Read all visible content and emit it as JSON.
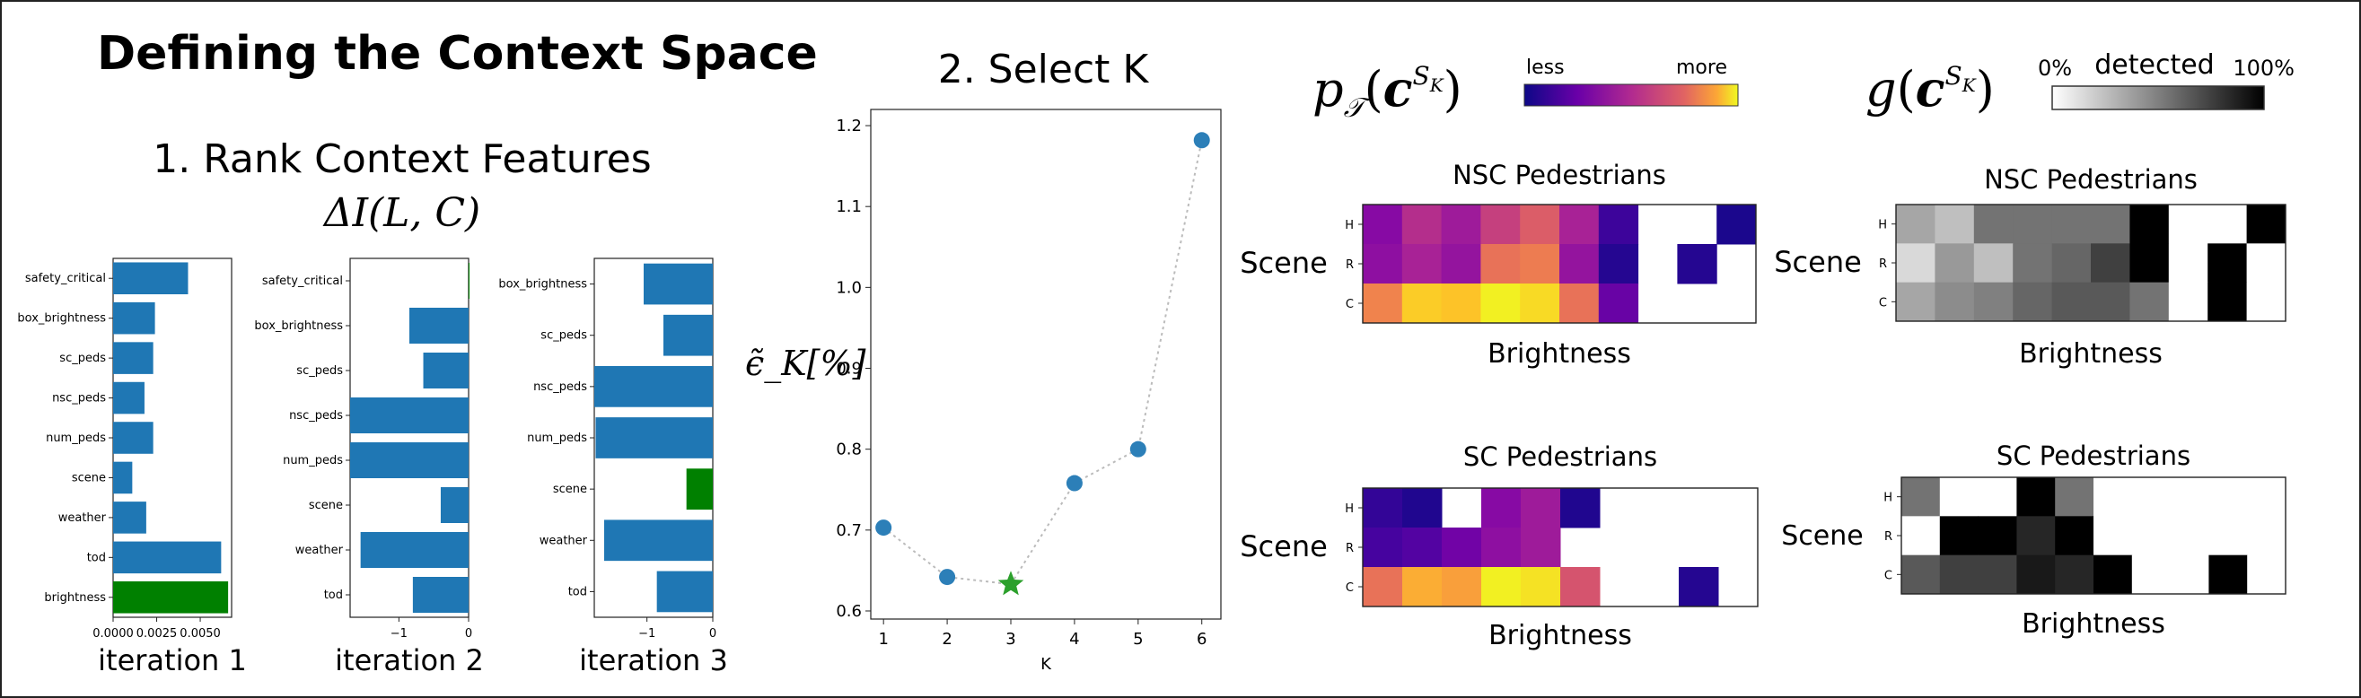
{
  "page": {
    "title": "Defining the Context Space",
    "section1_title": "1. Rank Context Features",
    "section1_formula": "ΔI(L, C)",
    "section2_title": "2. Select K"
  },
  "colors": {
    "bar": "#1f77b4",
    "highlight": "#008000",
    "marker": "#2c7fb8",
    "star": "#2ca02c"
  },
  "chart_data": [
    {
      "type": "bar",
      "orientation": "horizontal",
      "xlabel": "iteration 1",
      "xlim": [
        0,
        0.0068
      ],
      "xticks": [
        "0.0000",
        "0.0025",
        "0.0050"
      ],
      "xtick_values": [
        0,
        0.0025,
        0.005
      ],
      "categories": [
        "safety_critical",
        "box_brightness",
        "sc_peds",
        "nsc_peds",
        "num_peds",
        "scene",
        "weather",
        "tod",
        "brightness"
      ],
      "values": [
        0.0043,
        0.0024,
        0.0023,
        0.0018,
        0.0023,
        0.0011,
        0.0019,
        0.0062,
        0.0066
      ],
      "highlight": "brightness"
    },
    {
      "type": "bar",
      "orientation": "horizontal",
      "xlabel": "iteration 2",
      "xlim": [
        -1.7,
        0
      ],
      "xticks": [
        "−1",
        "0"
      ],
      "xtick_values": [
        -1,
        0
      ],
      "categories": [
        "safety_critical",
        "box_brightness",
        "sc_peds",
        "nsc_peds",
        "num_peds",
        "scene",
        "weather",
        "tod"
      ],
      "values": [
        0.04,
        -0.85,
        -0.65,
        -1.75,
        -1.75,
        -0.4,
        -1.55,
        -0.8
      ],
      "highlight": "safety_critical"
    },
    {
      "type": "bar",
      "orientation": "horizontal",
      "xlabel": "iteration 3",
      "xlim": [
        -1.8,
        0
      ],
      "xticks": [
        "−1",
        "0"
      ],
      "xtick_values": [
        -1,
        0
      ],
      "categories": [
        "box_brightness",
        "sc_peds",
        "nsc_peds",
        "num_peds",
        "scene",
        "weather",
        "tod"
      ],
      "values": [
        -1.05,
        -0.75,
        -1.8,
        -1.78,
        -0.4,
        -1.65,
        -0.85
      ],
      "highlight": "scene"
    },
    {
      "type": "line",
      "ylabel": "ϵ̃_K[%]",
      "xlabel": "K",
      "x": [
        1,
        2,
        3,
        4,
        5,
        6
      ],
      "y": [
        0.703,
        0.642,
        0.633,
        0.758,
        0.8,
        1.182
      ],
      "xlim": [
        0.8,
        6.3
      ],
      "ylim": [
        0.59,
        1.22
      ],
      "yticks": [
        "0.6",
        "0.7",
        "0.8",
        "0.9",
        "1.0",
        "1.1",
        "1.2"
      ],
      "ytick_values": [
        0.6,
        0.7,
        0.8,
        0.9,
        1.0,
        1.1,
        1.2
      ],
      "xticks": [
        "1",
        "2",
        "3",
        "4",
        "5",
        "6"
      ],
      "selected_k": 3
    },
    {
      "type": "heatmap",
      "title": "NSC Pedestrians",
      "xlabel": "Brightness",
      "ylabel": "Scene",
      "rows": [
        "H",
        "R",
        "C"
      ],
      "colormap": "plasma",
      "values": [
        [
          0.28,
          0.42,
          0.35,
          0.48,
          0.58,
          0.38,
          0.1,
          null,
          null,
          0.03
        ],
        [
          0.3,
          0.38,
          0.32,
          0.65,
          0.68,
          0.32,
          0.05,
          null,
          0.05,
          null
        ],
        [
          0.7,
          0.9,
          0.88,
          0.98,
          0.93,
          0.65,
          0.2,
          null,
          null,
          null
        ]
      ]
    },
    {
      "type": "heatmap",
      "title": "NSC Pedestrians",
      "xlabel": "Brightness",
      "ylabel": "Scene",
      "rows": [
        "H",
        "R",
        "C"
      ],
      "colormap": "gray",
      "values": [
        [
          0.35,
          0.25,
          0.55,
          0.55,
          0.55,
          0.55,
          1.0,
          0.0,
          0.0,
          1.0
        ],
        [
          0.15,
          0.4,
          0.25,
          0.55,
          0.6,
          0.75,
          1.0,
          0.0,
          1.0,
          0.0
        ],
        [
          0.35,
          0.45,
          0.5,
          0.6,
          0.65,
          0.65,
          0.55,
          0.0,
          1.0,
          0.0
        ]
      ]
    },
    {
      "type": "heatmap",
      "title": "SC Pedestrians",
      "xlabel": "Brightness",
      "ylabel": "Scene",
      "rows": [
        "H",
        "R",
        "C"
      ],
      "colormap": "plasma",
      "values": [
        [
          0.08,
          0.04,
          null,
          0.28,
          0.35,
          0.04,
          null,
          null,
          null,
          null
        ],
        [
          0.12,
          0.15,
          0.22,
          0.3,
          0.35,
          null,
          null,
          null,
          null,
          null
        ],
        [
          0.65,
          0.82,
          0.78,
          0.98,
          0.95,
          0.55,
          null,
          null,
          0.05,
          null
        ]
      ]
    },
    {
      "type": "heatmap",
      "title": "SC Pedestrians",
      "xlabel": "Brightness",
      "ylabel": "Scene",
      "rows": [
        "H",
        "R",
        "C"
      ],
      "colormap": "gray",
      "values": [
        [
          0.55,
          0.0,
          0.0,
          1.0,
          0.55,
          0.0,
          0.0,
          0.0,
          0.0,
          0.0
        ],
        [
          0.0,
          1.0,
          1.0,
          0.85,
          1.0,
          0.0,
          0.0,
          0.0,
          0.0,
          0.0
        ],
        [
          0.65,
          0.75,
          0.75,
          0.9,
          0.85,
          1.0,
          0.0,
          0.0,
          1.0,
          0.0
        ]
      ]
    }
  ],
  "legends": {
    "plasma": {
      "formula_main": "p",
      "formula_sub": "𝒯",
      "formula_arg": "c",
      "formula_sup": "S",
      "formula_supsub": "K",
      "low": "less",
      "high": "more"
    },
    "gray": {
      "formula_main": "g",
      "formula_arg": "c",
      "formula_sup": "S",
      "formula_supsub": "K",
      "low": "0%",
      "mid": "detected",
      "high": "100%"
    }
  }
}
